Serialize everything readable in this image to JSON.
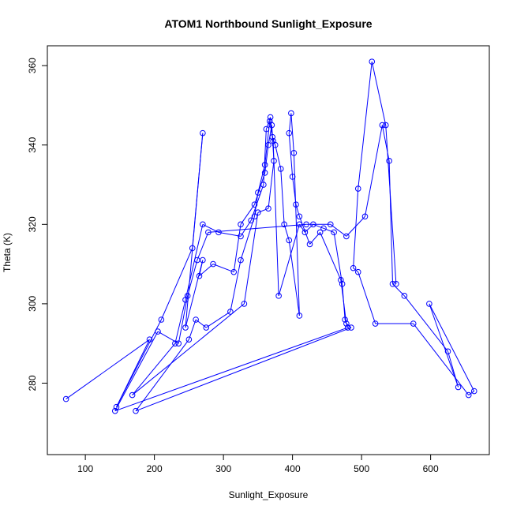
{
  "chart_data": {
    "type": "line",
    "title": "ATOM1 Northbound Sunlight_Exposure",
    "xlabel": "Sunlight_Exposure",
    "ylabel": "Theta (K)",
    "xlim": [
      45,
      685
    ],
    "ylim": [
      262,
      365
    ],
    "xticks": [
      100,
      200,
      300,
      400,
      500,
      600
    ],
    "yticks": [
      280,
      300,
      320,
      340,
      360
    ],
    "grid": false,
    "legend": "none",
    "colors": {
      "series": "#0000ff",
      "axis": "#000000"
    },
    "series": [
      {
        "marker": "open-circle",
        "points": [
          {
            "x": 72,
            "y": 276
          },
          {
            "x": 193,
            "y": 291
          },
          {
            "x": 145,
            "y": 274
          },
          {
            "x": 210,
            "y": 296
          },
          {
            "x": 255,
            "y": 314
          },
          {
            "x": 270,
            "y": 343
          },
          {
            "x": 245,
            "y": 294
          },
          {
            "x": 270,
            "y": 311
          },
          {
            "x": 265,
            "y": 307
          },
          {
            "x": 285,
            "y": 310
          },
          {
            "x": 315,
            "y": 308
          },
          {
            "x": 325,
            "y": 320
          },
          {
            "x": 345,
            "y": 325
          },
          {
            "x": 360,
            "y": 333
          },
          {
            "x": 365,
            "y": 340
          },
          {
            "x": 370,
            "y": 345
          },
          {
            "x": 373,
            "y": 336
          },
          {
            "x": 365,
            "y": 324
          },
          {
            "x": 350,
            "y": 323
          },
          {
            "x": 330,
            "y": 300
          },
          {
            "x": 168,
            "y": 277
          },
          {
            "x": 230,
            "y": 290
          },
          {
            "x": 245,
            "y": 301
          },
          {
            "x": 270,
            "y": 320
          },
          {
            "x": 293,
            "y": 318
          },
          {
            "x": 325,
            "y": 317
          },
          {
            "x": 340,
            "y": 321
          },
          {
            "x": 358,
            "y": 330
          },
          {
            "x": 362,
            "y": 344
          },
          {
            "x": 368,
            "y": 347
          },
          {
            "x": 371,
            "y": 342
          },
          {
            "x": 375,
            "y": 340
          },
          {
            "x": 383,
            "y": 334
          },
          {
            "x": 388,
            "y": 320
          },
          {
            "x": 395,
            "y": 316
          },
          {
            "x": 410,
            "y": 297
          },
          {
            "x": 402,
            "y": 338
          },
          {
            "x": 398,
            "y": 348
          },
          {
            "x": 395,
            "y": 343
          },
          {
            "x": 400,
            "y": 332
          },
          {
            "x": 405,
            "y": 325
          },
          {
            "x": 410,
            "y": 322
          },
          {
            "x": 425,
            "y": 315
          },
          {
            "x": 440,
            "y": 318
          },
          {
            "x": 470,
            "y": 306
          },
          {
            "x": 478,
            "y": 295
          },
          {
            "x": 485,
            "y": 294
          },
          {
            "x": 173,
            "y": 273
          },
          {
            "x": 250,
            "y": 291
          },
          {
            "x": 260,
            "y": 296
          },
          {
            "x": 275,
            "y": 294
          },
          {
            "x": 310,
            "y": 298
          },
          {
            "x": 325,
            "y": 311
          },
          {
            "x": 345,
            "y": 322
          },
          {
            "x": 350,
            "y": 328
          },
          {
            "x": 360,
            "y": 335
          },
          {
            "x": 367,
            "y": 346
          },
          {
            "x": 372,
            "y": 341
          },
          {
            "x": 380,
            "y": 302
          },
          {
            "x": 410,
            "y": 320
          },
          {
            "x": 418,
            "y": 318
          },
          {
            "x": 430,
            "y": 320
          },
          {
            "x": 445,
            "y": 319
          },
          {
            "x": 460,
            "y": 318
          },
          {
            "x": 472,
            "y": 305
          },
          {
            "x": 476,
            "y": 296
          },
          {
            "x": 480,
            "y": 294
          },
          {
            "x": 143,
            "y": 273
          },
          {
            "x": 205,
            "y": 293
          },
          {
            "x": 235,
            "y": 290
          },
          {
            "x": 248,
            "y": 302
          },
          {
            "x": 262,
            "y": 311
          },
          {
            "x": 278,
            "y": 318
          },
          {
            "x": 420,
            "y": 320
          },
          {
            "x": 455,
            "y": 320
          },
          {
            "x": 478,
            "y": 317
          },
          {
            "x": 505,
            "y": 322
          },
          {
            "x": 530,
            "y": 345
          },
          {
            "x": 540,
            "y": 336
          },
          {
            "x": 545,
            "y": 305
          },
          {
            "x": 562,
            "y": 302
          },
          {
            "x": 625,
            "y": 288
          },
          {
            "x": 640,
            "y": 279
          },
          {
            "x": 598,
            "y": 300
          },
          {
            "x": 663,
            "y": 278
          },
          {
            "x": 655,
            "y": 277
          },
          {
            "x": 575,
            "y": 295
          },
          {
            "x": 520,
            "y": 295
          },
          {
            "x": 495,
            "y": 308
          },
          {
            "x": 488,
            "y": 309
          },
          {
            "x": 495,
            "y": 329
          },
          {
            "x": 515,
            "y": 361
          },
          {
            "x": 535,
            "y": 345
          },
          {
            "x": 550,
            "y": 305
          }
        ]
      }
    ]
  }
}
